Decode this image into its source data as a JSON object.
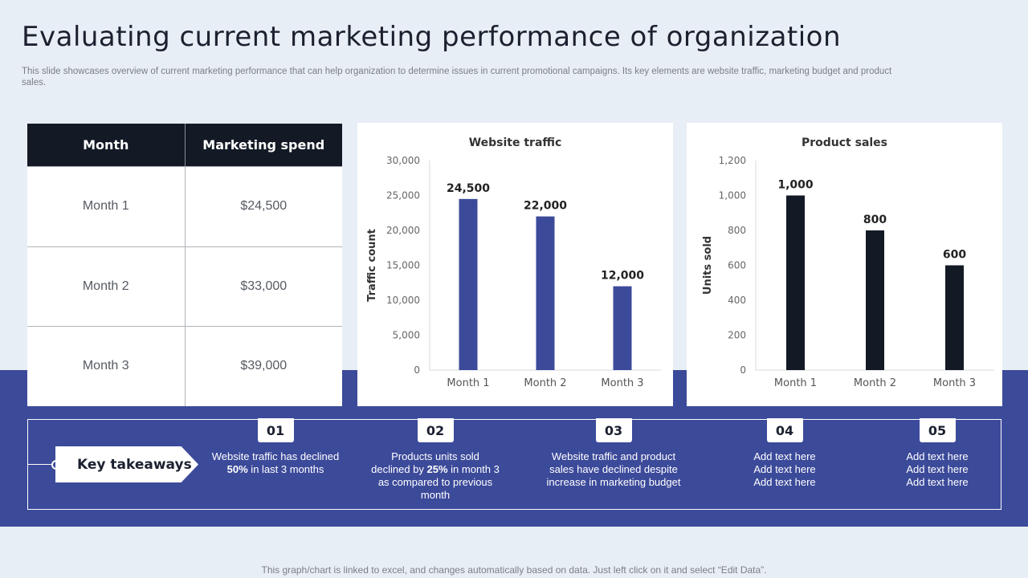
{
  "header": {
    "title": "Evaluating current marketing performance of organization",
    "subtitle": "This slide showcases overview of current marketing performance that can help organization to determine issues in current promotional campaigns. Its key elements are website traffic, marketing budget and  product sales."
  },
  "table": {
    "headers": [
      "Month",
      "Marketing spend"
    ],
    "rows": [
      {
        "month": "Month  1",
        "spend": "$24,500"
      },
      {
        "month": "Month  2",
        "spend": "$33,000"
      },
      {
        "month": "Month  3",
        "spend": "$39,000"
      }
    ]
  },
  "chart_data": [
    {
      "type": "bar",
      "title": "Website traffic",
      "xlabel": "",
      "ylabel": "Traffic count",
      "categories": [
        "Month 1",
        "Month 2",
        "Month 3"
      ],
      "values": [
        24500,
        22000,
        12000
      ],
      "value_labels": [
        "24,500",
        "22,000",
        "12,000"
      ],
      "ylim": [
        0,
        30000
      ],
      "yticks": [
        0,
        5000,
        10000,
        15000,
        20000,
        25000,
        30000
      ],
      "ytick_labels": [
        "0",
        "5,000",
        "10,000",
        "15,000",
        "20,000",
        "25,000",
        "30,000"
      ],
      "color": "#3c4a9a",
      "grid": false
    },
    {
      "type": "bar",
      "title": "Product sales",
      "xlabel": "",
      "ylabel": "Units sold",
      "categories": [
        "Month 1",
        "Month 2",
        "Month 3"
      ],
      "values": [
        1000,
        800,
        600
      ],
      "value_labels": [
        "1,000",
        "800",
        "600"
      ],
      "ylim": [
        0,
        1200
      ],
      "yticks": [
        0,
        200,
        400,
        600,
        800,
        1000,
        1200
      ],
      "ytick_labels": [
        "0",
        "200",
        "400",
        "600",
        "800",
        "1,000",
        "1,200"
      ],
      "color": "#131a26",
      "grid": false
    }
  ],
  "takeaways": {
    "label": "Key takeaways",
    "items": [
      {
        "num": "01",
        "pre": "Website traffic has declined ",
        "bold": "50%",
        "post": " in last 3 months"
      },
      {
        "num": "02",
        "pre": "Products units sold declined by ",
        "bold": "25%",
        "post": " in month 3 as compared to previous month"
      },
      {
        "num": "03",
        "pre": "Website traffic and product sales have declined despite increase in marketing budget",
        "bold": "",
        "post": ""
      },
      {
        "num": "04",
        "pre": "Add text here Add text here Add text here",
        "bold": "",
        "post": ""
      },
      {
        "num": "05",
        "pre": "Add text here Add text here Add text here",
        "bold": "",
        "post": ""
      }
    ]
  },
  "footer": {
    "note": "This graph/chart is linked to excel,  and changes automatically based on data. Just left click on it and select “Edit Data”."
  }
}
